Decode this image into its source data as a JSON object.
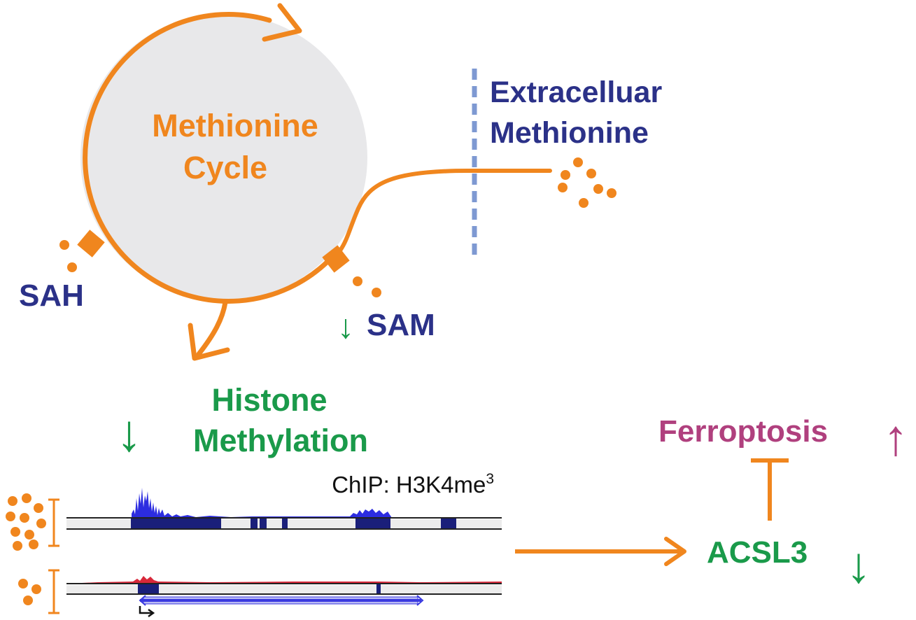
{
  "labels": {
    "cycle_line1": "Methionine",
    "cycle_line2": "Cycle",
    "extracellular_line1": "Extracelluar",
    "extracellular_line2": "Methionine",
    "sah": "SAH",
    "sam": "SAM",
    "sam_arrow": "↓",
    "histone_line1": "Histone",
    "histone_line2": "Methylation",
    "histone_arrow": "↓",
    "ferroptosis": "Ferroptosis",
    "ferroptosis_arrow": "↑",
    "acsl3": "ACSL3",
    "acsl3_arrow": "↓",
    "chip_prefix": "ChIP: H3K4me",
    "chip_superscript": "3"
  },
  "colors": {
    "orange": "#F0861E",
    "navy": "#2B3188",
    "green": "#1A9A4A",
    "magenta": "#B0407E",
    "cycle_fill": "#E8E8EA",
    "membrane": "#7E99D2",
    "track_blue": "#2C2CE0",
    "track_red": "#D8283A",
    "gene_navy": "#1A1F7A"
  }
}
